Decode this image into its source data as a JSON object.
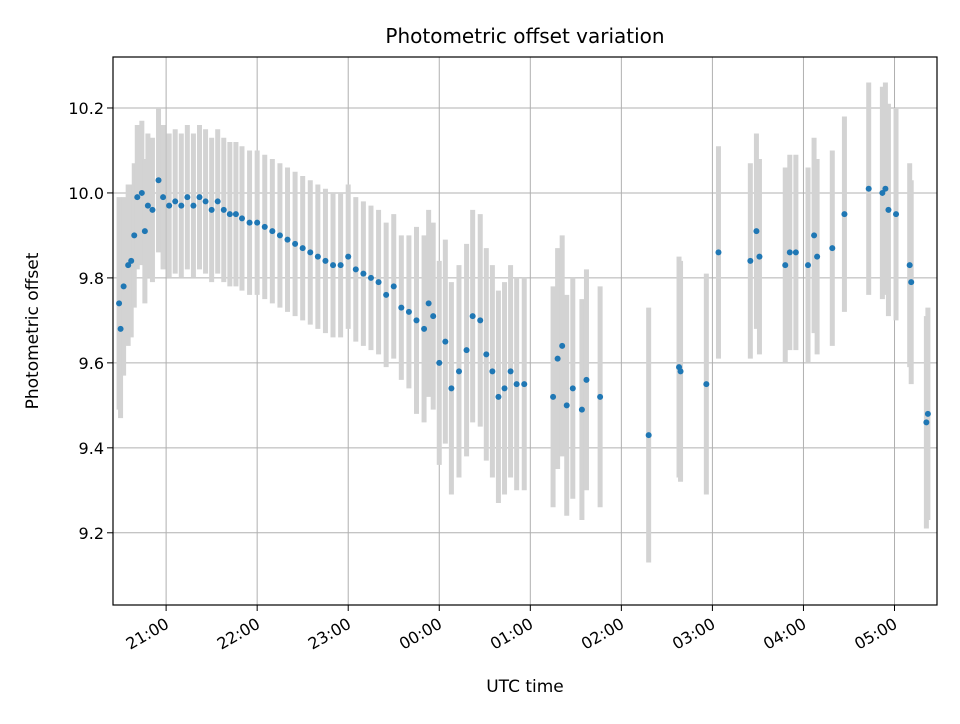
{
  "chart_data": {
    "type": "scatter",
    "title": "Photometric offset variation",
    "xlabel": "UTC time",
    "ylabel": "Photometric offset",
    "x_range": [
      "20:25",
      "05:28"
    ],
    "x_range_note": "times after midnight belong to the following day",
    "ylim": [
      9.03,
      10.32
    ],
    "x_ticks": [
      "21:00",
      "22:00",
      "23:00",
      "00:00",
      "01:00",
      "02:00",
      "03:00",
      "04:00",
      "05:00"
    ],
    "y_ticks": [
      9.2,
      9.4,
      9.6,
      9.8,
      10.0,
      10.2
    ],
    "grid": true,
    "colors": {
      "points": "#1f77b4",
      "errorbars": "#d3d3d3",
      "grid": "#b0b0b0"
    },
    "series": [
      {
        "points": [
          [
            "20:29",
            9.74,
            0.25
          ],
          [
            "20:30",
            9.68,
            0.21
          ],
          [
            "20:32",
            9.78,
            0.21
          ],
          [
            "20:35",
            9.83,
            0.19
          ],
          [
            "20:37",
            9.84,
            0.18
          ],
          [
            "20:39",
            9.9,
            0.17
          ],
          [
            "20:41",
            9.99,
            0.17
          ],
          [
            "20:44",
            10.0,
            0.17
          ],
          [
            "20:46",
            9.91,
            0.17
          ],
          [
            "20:48",
            9.97,
            0.17
          ],
          [
            "20:51",
            9.96,
            0.17
          ],
          [
            "20:55",
            10.03,
            0.17
          ],
          [
            "20:58",
            9.99,
            0.17
          ],
          [
            "21:02",
            9.97,
            0.17
          ],
          [
            "21:06",
            9.98,
            0.17
          ],
          [
            "21:10",
            9.97,
            0.17
          ],
          [
            "21:14",
            9.99,
            0.17
          ],
          [
            "21:18",
            9.97,
            0.17
          ],
          [
            "21:22",
            9.99,
            0.17
          ],
          [
            "21:26",
            9.98,
            0.17
          ],
          [
            "21:30",
            9.96,
            0.17
          ],
          [
            "21:34",
            9.98,
            0.17
          ],
          [
            "21:38",
            9.96,
            0.17
          ],
          [
            "21:42",
            9.95,
            0.17
          ],
          [
            "21:46",
            9.95,
            0.17
          ],
          [
            "21:50",
            9.94,
            0.17
          ],
          [
            "21:55",
            9.93,
            0.17
          ],
          [
            "22:00",
            9.93,
            0.17
          ],
          [
            "22:05",
            9.92,
            0.17
          ],
          [
            "22:10",
            9.91,
            0.17
          ],
          [
            "22:15",
            9.9,
            0.17
          ],
          [
            "22:20",
            9.89,
            0.17
          ],
          [
            "22:25",
            9.88,
            0.17
          ],
          [
            "22:30",
            9.87,
            0.17
          ],
          [
            "22:35",
            9.86,
            0.17
          ],
          [
            "22:40",
            9.85,
            0.17
          ],
          [
            "22:45",
            9.84,
            0.17
          ],
          [
            "22:50",
            9.83,
            0.17
          ],
          [
            "22:55",
            9.83,
            0.17
          ],
          [
            "23:00",
            9.85,
            0.17
          ],
          [
            "23:05",
            9.82,
            0.17
          ],
          [
            "23:10",
            9.81,
            0.17
          ],
          [
            "23:15",
            9.8,
            0.17
          ],
          [
            "23:20",
            9.79,
            0.17
          ],
          [
            "23:25",
            9.76,
            0.17
          ],
          [
            "23:30",
            9.78,
            0.17
          ],
          [
            "23:35",
            9.73,
            0.17
          ],
          [
            "23:40",
            9.72,
            0.18
          ],
          [
            "23:45",
            9.7,
            0.22
          ],
          [
            "23:50",
            9.68,
            0.22
          ],
          [
            "23:53",
            9.74,
            0.22
          ],
          [
            "23:56",
            9.71,
            0.22
          ],
          [
            "00:00",
            9.6,
            0.24
          ],
          [
            "00:04",
            9.65,
            0.24
          ],
          [
            "00:08",
            9.54,
            0.25
          ],
          [
            "00:13",
            9.58,
            0.25
          ],
          [
            "00:18",
            9.63,
            0.25
          ],
          [
            "00:22",
            9.71,
            0.25
          ],
          [
            "00:27",
            9.7,
            0.25
          ],
          [
            "00:31",
            9.62,
            0.25
          ],
          [
            "00:35",
            9.58,
            0.25
          ],
          [
            "00:39",
            9.52,
            0.25
          ],
          [
            "00:43",
            9.54,
            0.25
          ],
          [
            "00:47",
            9.58,
            0.25
          ],
          [
            "00:51",
            9.55,
            0.25
          ],
          [
            "00:56",
            9.55,
            0.25
          ],
          [
            "01:15",
            9.52,
            0.26
          ],
          [
            "01:18",
            9.61,
            0.26
          ],
          [
            "01:21",
            9.64,
            0.26
          ],
          [
            "01:24",
            9.5,
            0.26
          ],
          [
            "01:28",
            9.54,
            0.26
          ],
          [
            "01:34",
            9.49,
            0.26
          ],
          [
            "01:37",
            9.56,
            0.26
          ],
          [
            "01:46",
            9.52,
            0.26
          ],
          [
            "02:18",
            9.43,
            0.3
          ],
          [
            "02:38",
            9.59,
            0.26
          ],
          [
            "02:39",
            9.58,
            0.26
          ],
          [
            "02:56",
            9.55,
            0.26
          ],
          [
            "03:04",
            9.86,
            0.25
          ],
          [
            "03:25",
            9.84,
            0.23
          ],
          [
            "03:29",
            9.91,
            0.23
          ],
          [
            "03:31",
            9.85,
            0.23
          ],
          [
            "03:48",
            9.83,
            0.23
          ],
          [
            "03:51",
            9.86,
            0.23
          ],
          [
            "03:55",
            9.86,
            0.23
          ],
          [
            "04:03",
            9.83,
            0.23
          ],
          [
            "04:07",
            9.9,
            0.23
          ],
          [
            "04:09",
            9.85,
            0.23
          ],
          [
            "04:19",
            9.87,
            0.23
          ],
          [
            "04:27",
            9.95,
            0.23
          ],
          [
            "04:43",
            10.01,
            0.25
          ],
          [
            "04:52",
            10.0,
            0.25
          ],
          [
            "04:54",
            10.01,
            0.25
          ],
          [
            "04:56",
            9.96,
            0.25
          ],
          [
            "05:01",
            9.95,
            0.25
          ],
          [
            "05:10",
            9.83,
            0.24
          ],
          [
            "05:11",
            9.79,
            0.24
          ],
          [
            "05:21",
            9.46,
            0.25
          ],
          [
            "05:22",
            9.48,
            0.25
          ]
        ]
      }
    ]
  }
}
